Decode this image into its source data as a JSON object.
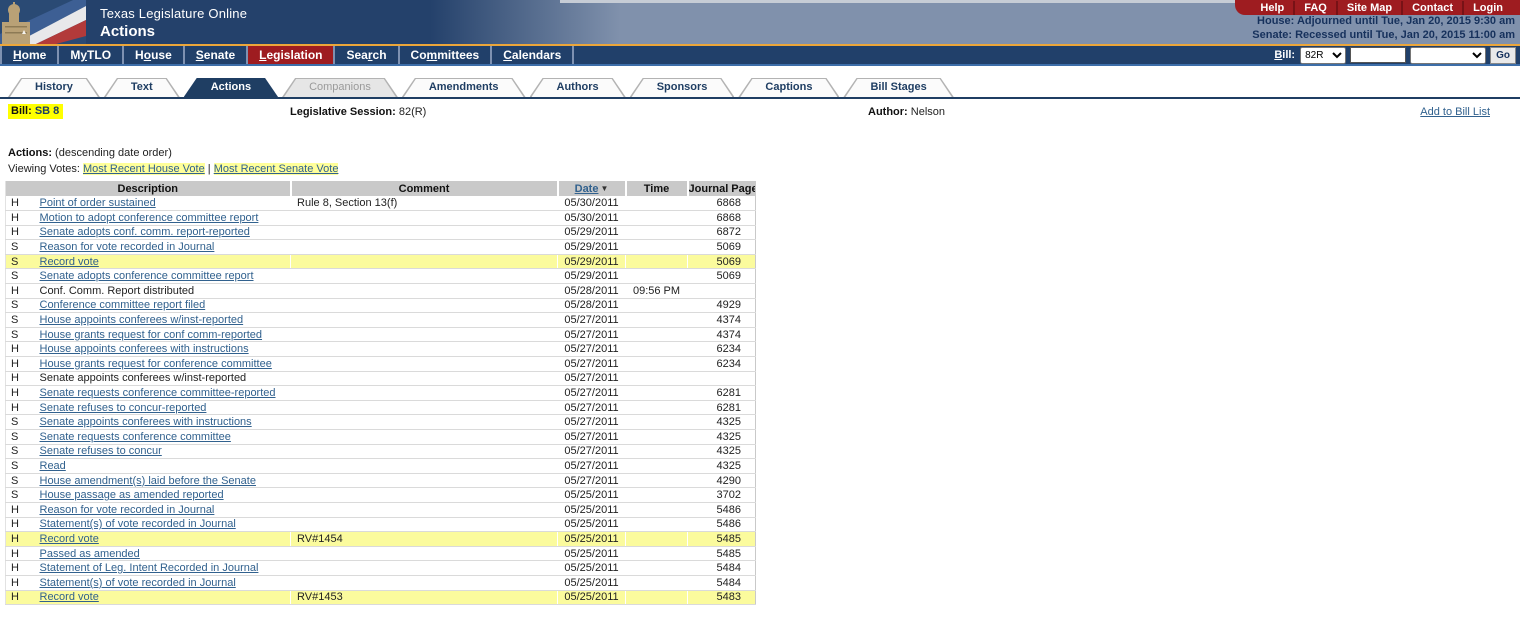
{
  "masthead": {
    "site_title": "Texas Legislature Online",
    "page_title": "Actions",
    "quicklinks": [
      "Help",
      "FAQ",
      "Site Map",
      "Contact",
      "Login"
    ],
    "house_status": "House: Adjourned until Tue, Jan 20, 2015 9:30 am",
    "senate_status": "Senate: Recessed until Tue, Jan 20, 2015 11:00 am"
  },
  "nav": {
    "items": [
      {
        "pre": "",
        "key": "H",
        "post": "ome",
        "active": false
      },
      {
        "pre": "M",
        "key": "y",
        "post": " TLO",
        "active": false
      },
      {
        "pre": "H",
        "key": "o",
        "post": "use",
        "active": false
      },
      {
        "pre": "",
        "key": "S",
        "post": "enate",
        "active": false
      },
      {
        "pre": "",
        "key": "L",
        "post": "egislation",
        "active": true
      },
      {
        "pre": "Sea",
        "key": "r",
        "post": "ch",
        "active": false
      },
      {
        "pre": "Co",
        "key": "m",
        "post": "mittees",
        "active": false
      },
      {
        "pre": "",
        "key": "C",
        "post": "alendars",
        "active": false
      }
    ],
    "bill_label": {
      "pre": "",
      "key": "B",
      "post": "ill:"
    },
    "session_value": "82R",
    "bill_number_value": "",
    "bill_type_value": "",
    "go_label": "Go"
  },
  "tabs": {
    "items": [
      {
        "label": "History",
        "state": "normal"
      },
      {
        "label": "Text",
        "state": "normal"
      },
      {
        "label": "Actions",
        "state": "active"
      },
      {
        "label": "Companions",
        "state": "disabled"
      },
      {
        "label": "Amendments",
        "state": "normal"
      },
      {
        "label": "Authors",
        "state": "normal"
      },
      {
        "label": "Sponsors",
        "state": "normal"
      },
      {
        "label": "Captions",
        "state": "normal"
      },
      {
        "label": "Bill Stages",
        "state": "normal"
      }
    ]
  },
  "bill_info": {
    "bill_label": "Bill:",
    "bill_value": "SB 8",
    "session_label": "Legislative Session:",
    "session_value": "82(R)",
    "author_label": "Author:",
    "author_value": "Nelson",
    "add_to_bill_list": "Add to Bill List"
  },
  "actions": {
    "title": "Actions:",
    "order_note": " (descending date order)",
    "viewing_label": "Viewing Votes: ",
    "house_vote_link": "Most Recent House Vote",
    "separator": " | ",
    "senate_vote_link": "Most Recent Senate Vote"
  },
  "table": {
    "columns": [
      {
        "label": "Description"
      },
      {
        "label": "Comment"
      },
      {
        "label": "Date",
        "sortable": true,
        "sort_arrow": "▼"
      },
      {
        "label": "Time"
      },
      {
        "label": "Journal Page"
      }
    ],
    "rows": [
      {
        "chamber": "H",
        "description": "Point of order sustained",
        "link": true,
        "comment": "Rule 8, Section 13(f)",
        "date": "05/30/2011",
        "time": "",
        "journal": "6868",
        "highlight": false
      },
      {
        "chamber": "H",
        "description": "Motion to adopt conference committee report",
        "link": true,
        "comment": "",
        "date": "05/30/2011",
        "time": "",
        "journal": "6868",
        "highlight": false
      },
      {
        "chamber": "H",
        "description": "Senate adopts conf. comm. report-reported",
        "link": true,
        "comment": "",
        "date": "05/29/2011",
        "time": "",
        "journal": "6872",
        "highlight": false
      },
      {
        "chamber": "S",
        "description": "Reason for vote recorded in Journal",
        "link": true,
        "comment": "",
        "date": "05/29/2011",
        "time": "",
        "journal": "5069",
        "highlight": false
      },
      {
        "chamber": "S",
        "description": "Record vote",
        "link": true,
        "comment": "",
        "date": "05/29/2011",
        "time": "",
        "journal": "5069",
        "highlight": true
      },
      {
        "chamber": "S",
        "description": "Senate adopts conference committee report",
        "link": true,
        "comment": "",
        "date": "05/29/2011",
        "time": "",
        "journal": "5069",
        "highlight": false
      },
      {
        "chamber": "H",
        "description": "Conf. Comm. Report distributed",
        "link": false,
        "comment": "",
        "date": "05/28/2011",
        "time": "09:56 PM",
        "journal": "",
        "highlight": false
      },
      {
        "chamber": "S",
        "description": "Conference committee report filed",
        "link": true,
        "comment": "",
        "date": "05/28/2011",
        "time": "",
        "journal": "4929",
        "highlight": false
      },
      {
        "chamber": "S",
        "description": "House appoints conferees w/inst-reported",
        "link": true,
        "comment": "",
        "date": "05/27/2011",
        "time": "",
        "journal": "4374",
        "highlight": false
      },
      {
        "chamber": "S",
        "description": "House grants request for conf comm-reported",
        "link": true,
        "comment": "",
        "date": "05/27/2011",
        "time": "",
        "journal": "4374",
        "highlight": false
      },
      {
        "chamber": "H",
        "description": "House appoints conferees with instructions",
        "link": true,
        "comment": "",
        "date": "05/27/2011",
        "time": "",
        "journal": "6234",
        "highlight": false
      },
      {
        "chamber": "H",
        "description": "House grants request for conference committee",
        "link": true,
        "comment": "",
        "date": "05/27/2011",
        "time": "",
        "journal": "6234",
        "highlight": false
      },
      {
        "chamber": "H",
        "description": "Senate appoints conferees w/inst-reported",
        "link": false,
        "comment": "",
        "date": "05/27/2011",
        "time": "",
        "journal": "",
        "highlight": false
      },
      {
        "chamber": "H",
        "description": "Senate requests conference committee-reported",
        "link": true,
        "comment": "",
        "date": "05/27/2011",
        "time": "",
        "journal": "6281",
        "highlight": false
      },
      {
        "chamber": "H",
        "description": "Senate refuses to concur-reported",
        "link": true,
        "comment": "",
        "date": "05/27/2011",
        "time": "",
        "journal": "6281",
        "highlight": false
      },
      {
        "chamber": "S",
        "description": "Senate appoints conferees with instructions",
        "link": true,
        "comment": "",
        "date": "05/27/2011",
        "time": "",
        "journal": "4325",
        "highlight": false
      },
      {
        "chamber": "S",
        "description": "Senate requests conference committee",
        "link": true,
        "comment": "",
        "date": "05/27/2011",
        "time": "",
        "journal": "4325",
        "highlight": false
      },
      {
        "chamber": "S",
        "description": "Senate refuses to concur",
        "link": true,
        "comment": "",
        "date": "05/27/2011",
        "time": "",
        "journal": "4325",
        "highlight": false
      },
      {
        "chamber": "S",
        "description": "Read",
        "link": true,
        "comment": "",
        "date": "05/27/2011",
        "time": "",
        "journal": "4325",
        "highlight": false
      },
      {
        "chamber": "S",
        "description": "House amendment(s) laid before the Senate",
        "link": true,
        "comment": "",
        "date": "05/27/2011",
        "time": "",
        "journal": "4290",
        "highlight": false
      },
      {
        "chamber": "S",
        "description": "House passage as amended reported",
        "link": true,
        "comment": "",
        "date": "05/25/2011",
        "time": "",
        "journal": "3702",
        "highlight": false
      },
      {
        "chamber": "H",
        "description": "Reason for vote recorded in Journal",
        "link": true,
        "comment": "",
        "date": "05/25/2011",
        "time": "",
        "journal": "5486",
        "highlight": false
      },
      {
        "chamber": "H",
        "description": "Statement(s) of vote recorded in Journal",
        "link": true,
        "comment": "",
        "date": "05/25/2011",
        "time": "",
        "journal": "5486",
        "highlight": false
      },
      {
        "chamber": "H",
        "description": "Record vote",
        "link": true,
        "comment": "RV#1454",
        "date": "05/25/2011",
        "time": "",
        "journal": "5485",
        "highlight": true
      },
      {
        "chamber": "H",
        "description": "Passed as amended",
        "link": true,
        "comment": "",
        "date": "05/25/2011",
        "time": "",
        "journal": "5485",
        "highlight": false
      },
      {
        "chamber": "H",
        "description": "Statement of Leg. Intent Recorded in Journal",
        "link": true,
        "comment": "",
        "date": "05/25/2011",
        "time": "",
        "journal": "5484",
        "highlight": false
      },
      {
        "chamber": "H",
        "description": "Statement(s) of vote recorded in Journal",
        "link": true,
        "comment": "",
        "date": "05/25/2011",
        "time": "",
        "journal": "5484",
        "highlight": false
      },
      {
        "chamber": "H",
        "description": "Record vote",
        "link": true,
        "comment": "RV#1453",
        "date": "05/25/2011",
        "time": "",
        "journal": "5483",
        "highlight": true
      }
    ]
  },
  "colors": {
    "masthead_navy": "#24416b",
    "masthead_slate": "#8091ac",
    "gold_rule": "#eca63a",
    "brick_red": "#9e1c20",
    "navbar_navy": "#21406a",
    "tab_active_navy": "#1f3e63",
    "link_blue": "#31618e",
    "bill_highlight": "#ffff00",
    "row_highlight": "#fbfb9d",
    "table_header_gray": "#c9c9c9"
  }
}
